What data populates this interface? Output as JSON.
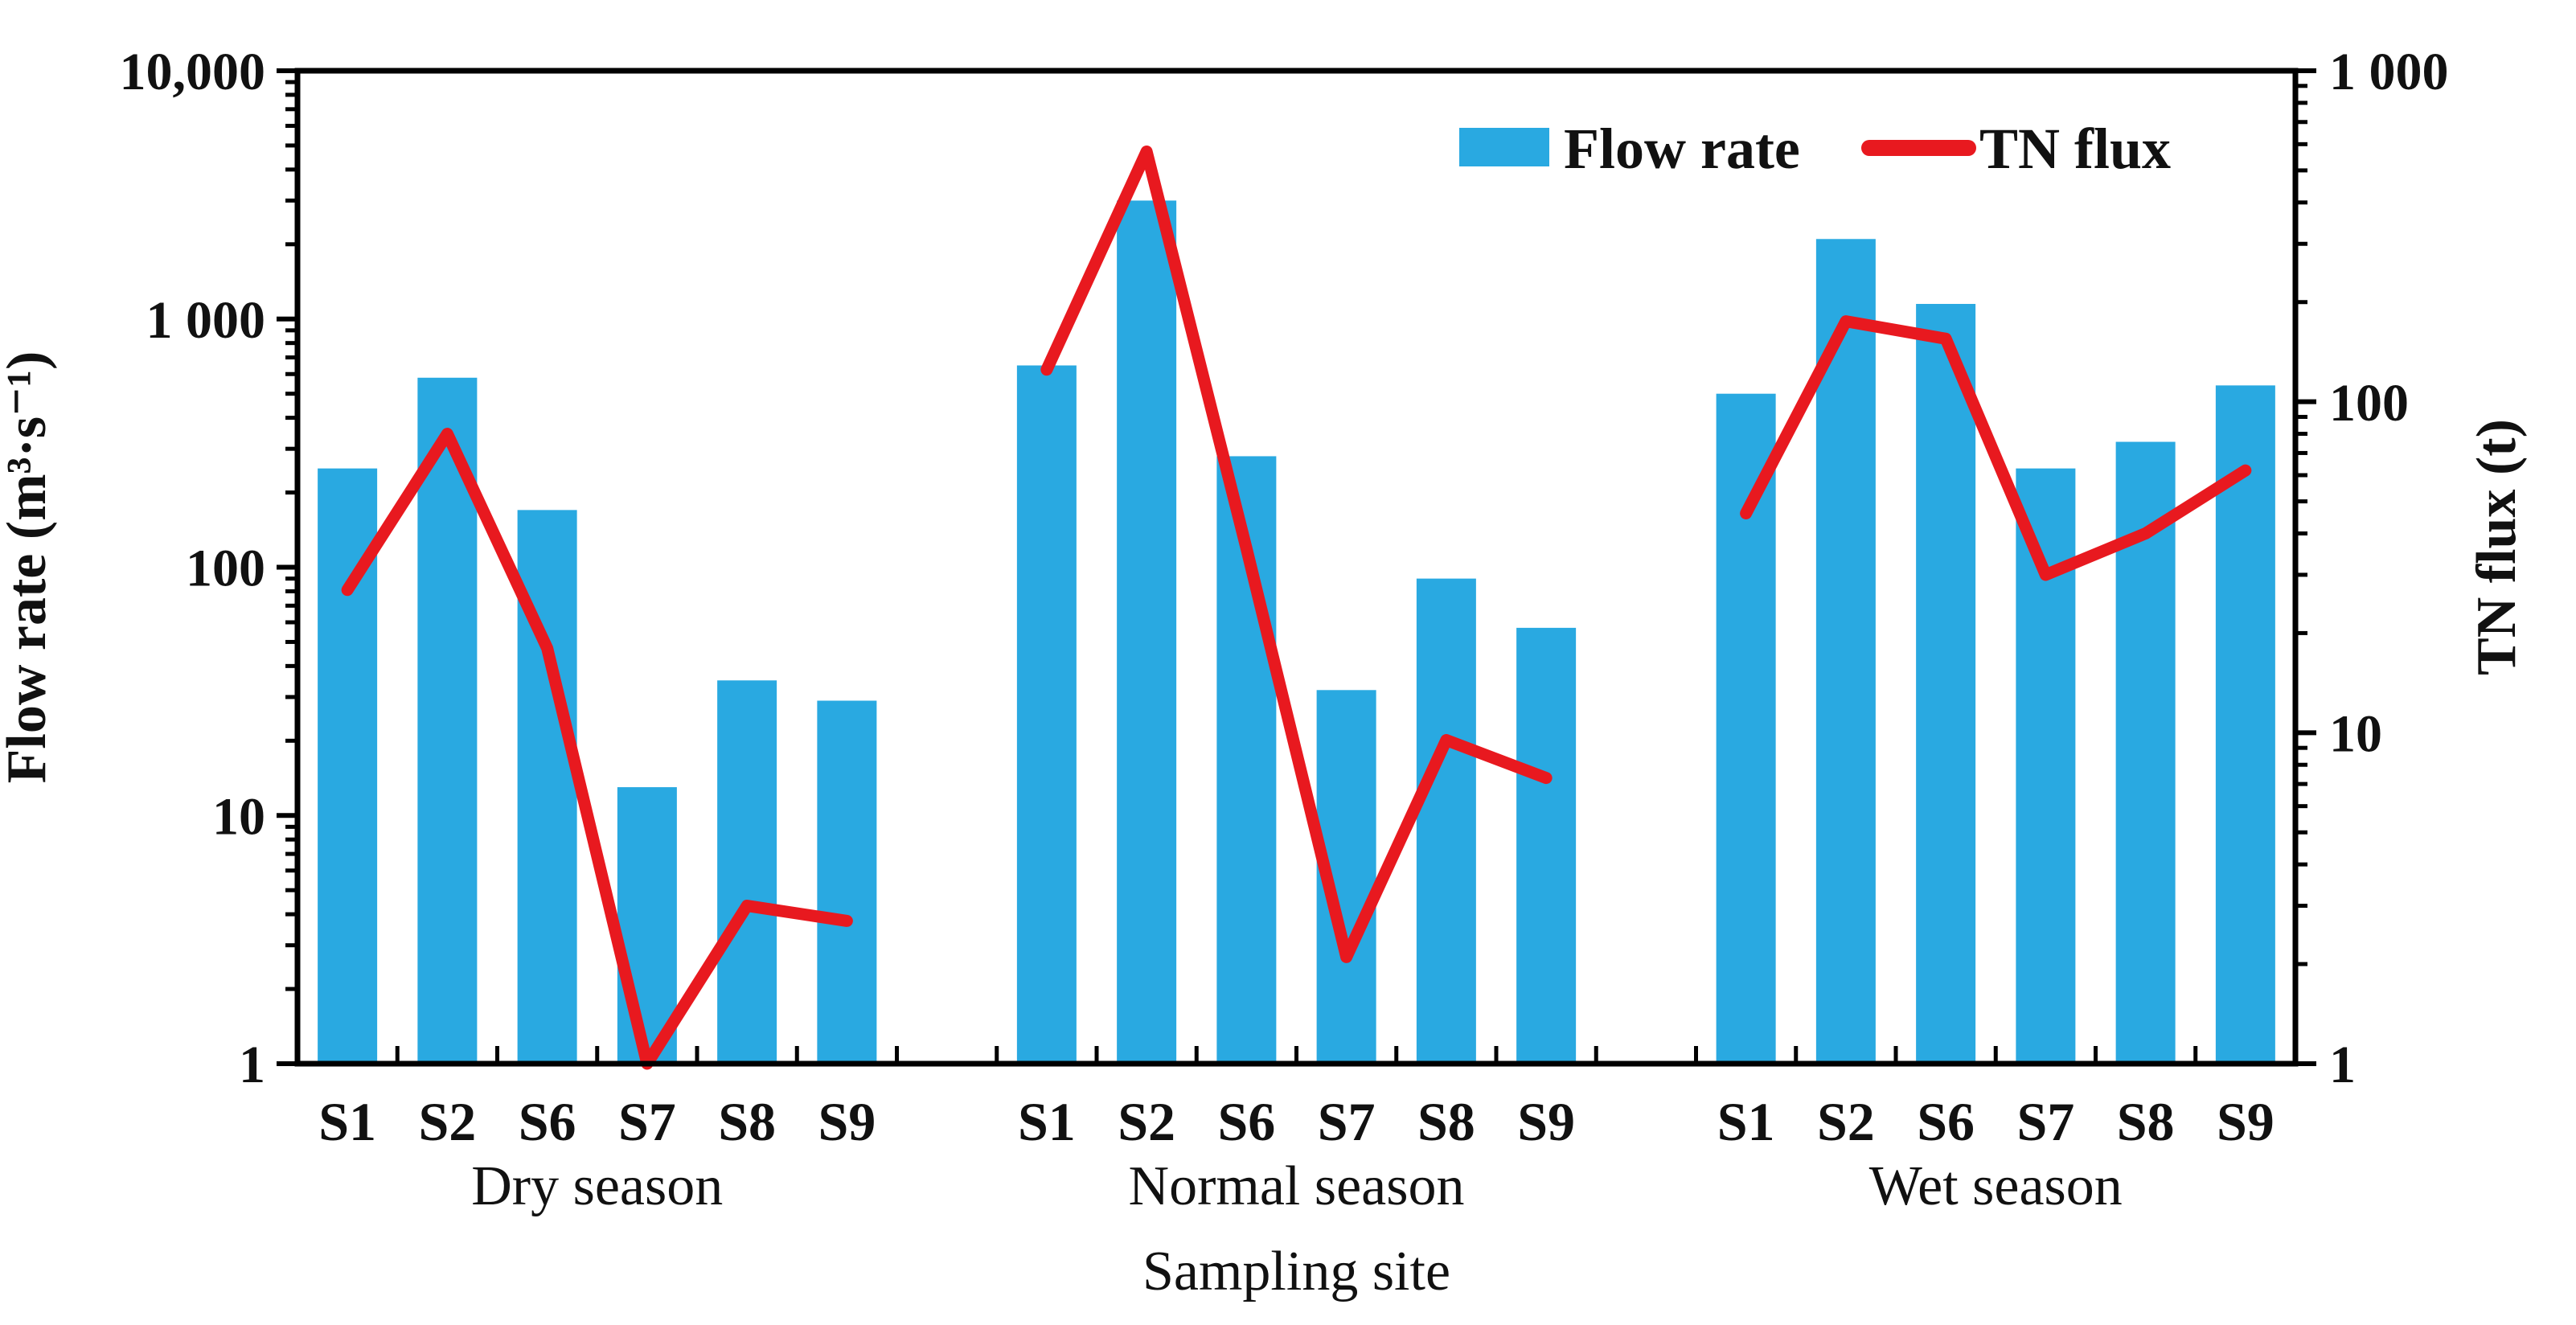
{
  "chart_data": {
    "type": "bar",
    "title": "",
    "categories": [
      "S1",
      "S2",
      "S6",
      "S7",
      "S8",
      "S9"
    ],
    "group_labels": [
      "Dry season",
      "Normal season",
      "Wet season"
    ],
    "series": [
      {
        "name": "Flow rate",
        "type": "bar",
        "axis": "left",
        "values": {
          "Dry season": [
            250,
            580,
            170,
            13,
            35,
            29
          ],
          "Normal season": [
            650,
            3000,
            280,
            32,
            90,
            57
          ],
          "Wet season": [
            500,
            2100,
            1150,
            250,
            320,
            540
          ]
        }
      },
      {
        "name": "TN flux",
        "type": "line",
        "axis": "right",
        "values": {
          "Dry season": [
            27,
            80,
            18,
            1.0,
            3.0,
            2.7
          ],
          "Normal season": [
            125,
            570,
            36,
            2.1,
            9.5,
            7.3
          ],
          "Wet season": [
            46,
            175,
            155,
            30,
            40,
            62
          ]
        }
      }
    ],
    "left_axis": {
      "title": "Flow rate (m³·s⁻¹)",
      "scale": "log",
      "min": 1,
      "max": 10000,
      "tick_labels": [
        "10,000",
        "1 000",
        "100",
        "10",
        "1"
      ],
      "tick_values": [
        10000,
        1000,
        100,
        10,
        1
      ]
    },
    "right_axis": {
      "title": "TN flux (t)",
      "scale": "log",
      "min": 1,
      "max": 1000,
      "tick_labels": [
        "1 000",
        "100",
        "10",
        "1"
      ],
      "tick_values": [
        1000,
        100,
        10,
        1
      ]
    },
    "x_axis": {
      "title": "Sampling site"
    },
    "legend": {
      "position": "top-right-inside",
      "entries": [
        "Flow rate",
        "TN flux"
      ]
    }
  },
  "colors": {
    "bar": "#29a9e1",
    "line": "#e8191f",
    "axis": "#000000",
    "text": "#111111",
    "background": "#ffffff"
  }
}
